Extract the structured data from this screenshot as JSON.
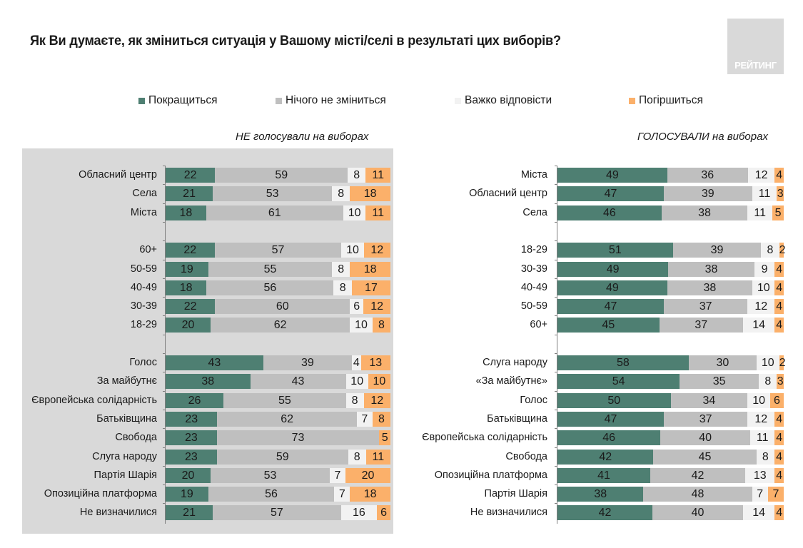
{
  "title": "Як Ви думаєте, як зміниться ситуація у Вашому місті/селі в результаті цих виборів?",
  "logo": {
    "text": "РЕЙТИНГ"
  },
  "colors": {
    "better": "#4e7f72",
    "same": "#bfbfbf",
    "hard": "#f2f2f2",
    "worse": "#fbb06a",
    "panel_bg": "#d9d9d9"
  },
  "chart_data": [
    {
      "type": "bar",
      "orientation": "horizontal",
      "stacked": true,
      "title": "НЕ голосували на виборах",
      "xlabel": "",
      "ylabel": "",
      "xlim": [
        0,
        100
      ],
      "legend": [
        "Покращиться",
        "Нічого не зміниться",
        "Важко відповісти",
        "Погіршиться"
      ],
      "legend_position": "top",
      "groups": [
        {
          "categories": [
            "Обласний центр",
            "Села",
            "Міста"
          ],
          "series": [
            {
              "name": "Покращиться",
              "values": [
                22,
                21,
                18
              ]
            },
            {
              "name": "Нічого не зміниться",
              "values": [
                59,
                53,
                61
              ]
            },
            {
              "name": "Важко відповісти",
              "values": [
                8,
                8,
                10
              ]
            },
            {
              "name": "Погіршиться",
              "values": [
                11,
                18,
                11
              ]
            }
          ]
        },
        {
          "categories": [
            "60+",
            "50-59",
            "40-49",
            "30-39",
            "18-29"
          ],
          "series": [
            {
              "name": "Покращиться",
              "values": [
                22,
                19,
                18,
                22,
                20
              ]
            },
            {
              "name": "Нічого не зміниться",
              "values": [
                57,
                55,
                56,
                60,
                62
              ]
            },
            {
              "name": "Важко відповісти",
              "values": [
                10,
                8,
                8,
                6,
                10
              ]
            },
            {
              "name": "Погіршиться",
              "values": [
                12,
                18,
                17,
                12,
                8
              ]
            }
          ]
        },
        {
          "categories": [
            "Голос",
            "За майбутнє",
            "Європейська солідарність",
            "Батьківщина",
            "Свобода",
            "Слуга народу",
            "Партія Шарія",
            "Опозиційна платформа",
            "Не визначилися"
          ],
          "series": [
            {
              "name": "Покращиться",
              "values": [
                43,
                38,
                26,
                23,
                23,
                23,
                20,
                19,
                21
              ]
            },
            {
              "name": "Нічого не зміниться",
              "values": [
                39,
                43,
                55,
                62,
                73,
                59,
                53,
                56,
                57
              ]
            },
            {
              "name": "Важко відповісти",
              "values": [
                4,
                10,
                8,
                7,
                0,
                8,
                7,
                7,
                16
              ]
            },
            {
              "name": "Погіршиться",
              "values": [
                13,
                10,
                12,
                8,
                5,
                11,
                20,
                18,
                6
              ]
            }
          ]
        }
      ]
    },
    {
      "type": "bar",
      "orientation": "horizontal",
      "stacked": true,
      "title": "ГОЛОСУВАЛИ на виборах",
      "xlabel": "",
      "ylabel": "",
      "xlim": [
        0,
        100
      ],
      "legend": [
        "Покращиться",
        "Нічого не зміниться",
        "Важко відповісти",
        "Погіршиться"
      ],
      "legend_position": "top",
      "groups": [
        {
          "categories": [
            "Міста",
            "Обласний центр",
            "Села"
          ],
          "series": [
            {
              "name": "Покращиться",
              "values": [
                49,
                47,
                46
              ]
            },
            {
              "name": "Нічого не зміниться",
              "values": [
                36,
                39,
                38
              ]
            },
            {
              "name": "Важко відповісти",
              "values": [
                12,
                11,
                11
              ]
            },
            {
              "name": "Погіршиться",
              "values": [
                4,
                3,
                5
              ]
            }
          ]
        },
        {
          "categories": [
            "18-29",
            "30-39",
            "40-49",
            "50-59",
            "60+"
          ],
          "series": [
            {
              "name": "Покращиться",
              "values": [
                51,
                49,
                49,
                47,
                45
              ]
            },
            {
              "name": "Нічого не зміниться",
              "values": [
                39,
                38,
                38,
                37,
                37
              ]
            },
            {
              "name": "Важко відповісти",
              "values": [
                8,
                9,
                10,
                12,
                14
              ]
            },
            {
              "name": "Погіршиться",
              "values": [
                2,
                4,
                4,
                4,
                4
              ]
            }
          ]
        },
        {
          "categories": [
            "Слуга народу",
            "«За майбутнє»",
            "Голос",
            "Батьківщина",
            "Європейська солідарність",
            "Свобода",
            "Опозиційна платформа",
            "Партія Шарія",
            "Не визначилися"
          ],
          "series": [
            {
              "name": "Покращиться",
              "values": [
                58,
                54,
                50,
                47,
                46,
                42,
                41,
                38,
                42
              ]
            },
            {
              "name": "Нічого не зміниться",
              "values": [
                30,
                35,
                34,
                37,
                40,
                45,
                42,
                48,
                40
              ]
            },
            {
              "name": "Важко відповісти",
              "values": [
                10,
                8,
                10,
                12,
                11,
                8,
                13,
                7,
                14
              ]
            },
            {
              "name": "Погіршиться",
              "values": [
                2,
                3,
                6,
                4,
                4,
                4,
                4,
                7,
                4
              ]
            }
          ]
        }
      ]
    }
  ]
}
